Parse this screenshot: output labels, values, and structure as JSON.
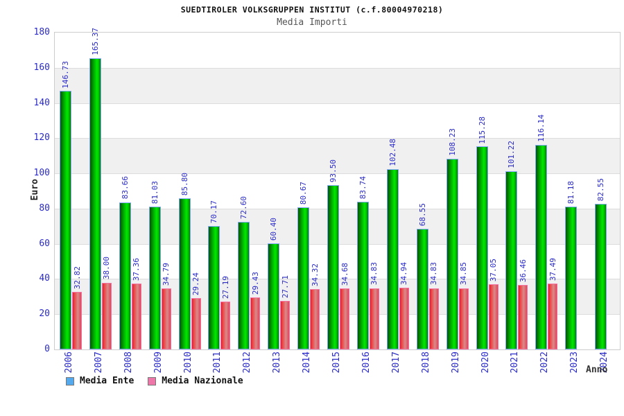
{
  "header": {
    "title": "SUEDTIROLER VOLKSGRUPPEN INSTITUT (c.f.80004970218)",
    "subtitle": "Media Importi"
  },
  "axes": {
    "y_label": "Euro",
    "x_label": "Anno",
    "y_ticks": [
      0,
      20,
      40,
      60,
      80,
      100,
      120,
      140,
      160,
      180
    ]
  },
  "legend": {
    "items": [
      {
        "label": "Media Ente",
        "color": "#55AAEE"
      },
      {
        "label": "Media Nazionale",
        "color": "#EE77AA"
      }
    ]
  },
  "colors": {
    "bar_ente_fill": "#00CC00",
    "bar_ente_border": "#7FA8F8",
    "bar_nazionale_fill": "#E8506A",
    "bar_nazionale_border": "#F470A0",
    "label_text": "#2A2AC8",
    "band_gray": "#F0F0F0"
  },
  "chart_data": {
    "type": "bar",
    "title": "SUEDTIROLER VOLKSGRUPPEN INSTITUT (c.f.80004970218)",
    "subtitle": "Media Importi",
    "xlabel": "Anno",
    "ylabel": "Euro",
    "ylim": [
      0,
      180
    ],
    "ytick_step": 20,
    "grid": "horizontal-bands-alternating",
    "legend_position": "bottom-left",
    "categories": [
      "2006",
      "2007",
      "2008",
      "2009",
      "2010",
      "2011",
      "2012",
      "2013",
      "2014",
      "2015",
      "2016",
      "2017",
      "2018",
      "2019",
      "2020",
      "2021",
      "2022",
      "2023",
      "2024"
    ],
    "series": [
      {
        "name": "Media Ente",
        "values": [
          146.73,
          165.37,
          83.66,
          81.03,
          85.8,
          70.17,
          72.6,
          60.4,
          80.67,
          93.5,
          83.74,
          102.48,
          68.55,
          108.23,
          115.28,
          101.22,
          116.14,
          81.18,
          82.55
        ],
        "labels": [
          "146.73",
          "165.37",
          "83.66",
          "81.03",
          "85.80",
          "70.17",
          "72.60",
          "60.40",
          "80.67",
          "93.50",
          "83.74",
          "102.48",
          "68.55",
          "108.23",
          "115.28",
          "101.22",
          "116.14",
          "81.18",
          "82.55"
        ]
      },
      {
        "name": "Media Nazionale",
        "values": [
          32.82,
          38.0,
          37.36,
          34.79,
          29.24,
          27.19,
          29.43,
          27.71,
          34.32,
          34.68,
          34.83,
          34.94,
          34.83,
          34.85,
          37.05,
          36.46,
          37.49,
          null,
          null
        ],
        "labels": [
          "32.82",
          "38.00",
          "37.36",
          "34.79",
          "29.24",
          "27.19",
          "29.43",
          "27.71",
          "34.32",
          "34.68",
          "34.83",
          "34.94",
          "34.83",
          "34.85",
          "37.05",
          "36.46",
          "37.49",
          "",
          ""
        ]
      }
    ]
  }
}
